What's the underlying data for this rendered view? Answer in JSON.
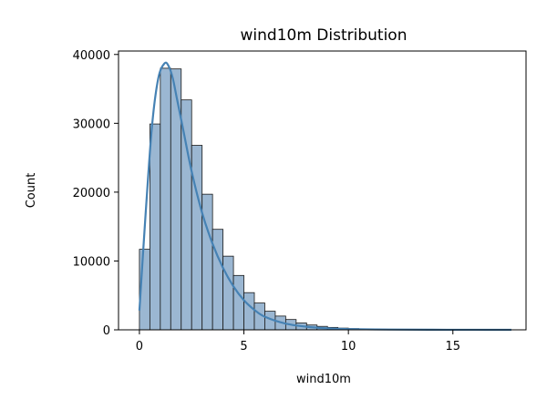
{
  "chart_data": {
    "type": "bar",
    "title": "wind10m Distribution",
    "xlabel": "wind10m",
    "ylabel": "Count",
    "xlim": [
      -1.0,
      18.5
    ],
    "ylim": [
      0,
      40500
    ],
    "xticks": [
      0,
      5,
      10,
      15
    ],
    "xtick_labels": [
      "0",
      "5",
      "10",
      "15"
    ],
    "yticks": [
      0,
      10000,
      20000,
      30000,
      40000
    ],
    "ytick_labels": [
      "0",
      "10000",
      "20000",
      "30000",
      "40000"
    ],
    "grid": false,
    "bin_width": 0.5,
    "bins_start": 0.0,
    "values": [
      11700,
      29900,
      38000,
      37900,
      33400,
      26800,
      19700,
      14600,
      10700,
      7900,
      5400,
      3900,
      2700,
      2000,
      1500,
      1000,
      700,
      500,
      350,
      250,
      180,
      130,
      100,
      80,
      60,
      45,
      35,
      28,
      22,
      18,
      14,
      11,
      9,
      7,
      6,
      5
    ],
    "kde": {
      "x": [
        0.0,
        0.3,
        0.6,
        0.9,
        1.2,
        1.4,
        1.6,
        1.8,
        2.1,
        2.5,
        3.0,
        3.5,
        4.0,
        4.5,
        5.0,
        5.5,
        6.0,
        7.0,
        8.0,
        9.0,
        10.0,
        12.0,
        14.0,
        16.0,
        17.8
      ],
      "y": [
        2800,
        17000,
        29500,
        36500,
        38700,
        38300,
        36500,
        33500,
        29000,
        23000,
        17000,
        12500,
        9000,
        6300,
        4300,
        2900,
        1900,
        900,
        450,
        220,
        110,
        40,
        15,
        5,
        0
      ]
    },
    "colors": {
      "bar_fill": "#9bb7d2",
      "bar_edge": "#1a1a1a",
      "kde": "#4682b4"
    }
  }
}
